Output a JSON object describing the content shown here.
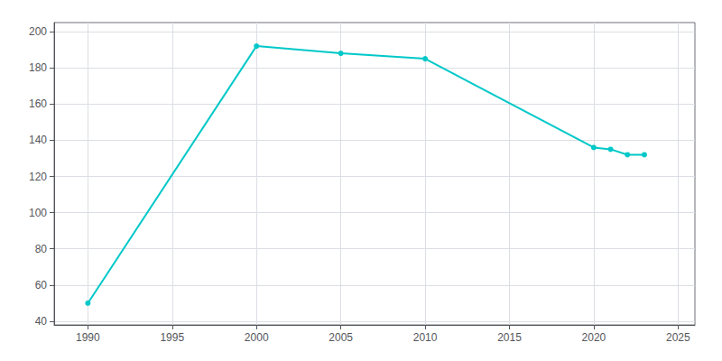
{
  "chart_data": {
    "type": "line",
    "x": [
      1990,
      2000,
      2005,
      2010,
      2020,
      2021,
      2022,
      2023
    ],
    "values": [
      50,
      192,
      188,
      185,
      136,
      135,
      132,
      132
    ],
    "color": "#00c8c8",
    "marker": "circle",
    "xlim": [
      1988,
      2026
    ],
    "xticks": [
      1990,
      1995,
      2000,
      2005,
      2010,
      2015,
      2020,
      2025
    ],
    "ylim": [
      38,
      205
    ],
    "yticks": [
      40,
      60,
      80,
      100,
      120,
      140,
      160,
      180,
      200
    ],
    "grid": true
  }
}
